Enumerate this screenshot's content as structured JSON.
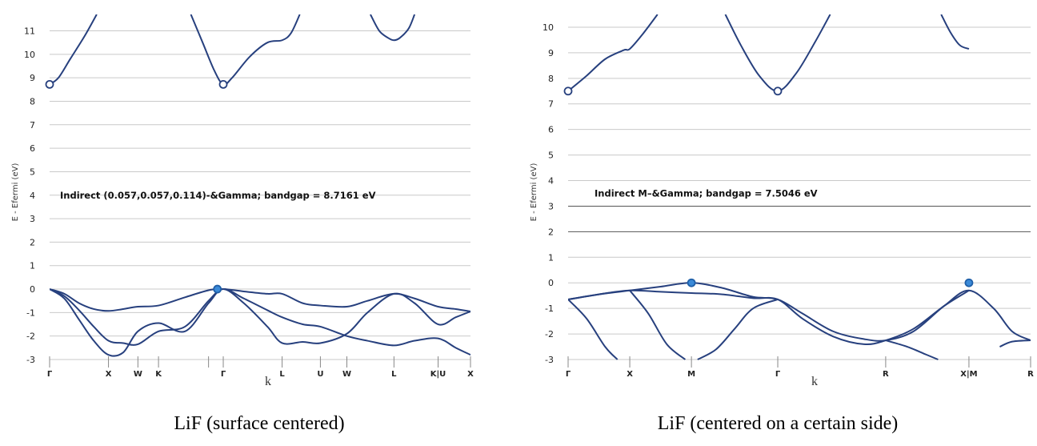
{
  "chart_data": [
    {
      "type": "line",
      "caption": "LiF (surface centered)",
      "ylabel": "E - Efermi (eV)",
      "xlabel": "k",
      "ylim": [
        -3,
        11.7
      ],
      "yticks": [
        -3,
        -2,
        -1,
        0,
        1,
        2,
        3,
        4,
        5,
        6,
        7,
        8,
        9,
        10,
        11
      ],
      "kpoints": [
        {
          "label": "Γ",
          "x": 0
        },
        {
          "label": "X",
          "x": 1.0
        },
        {
          "label": "W",
          "x": 1.5
        },
        {
          "label": "K",
          "x": 1.85
        },
        {
          "label": "",
          "x": 2.7
        },
        {
          "label": "Γ",
          "x": 2.95
        },
        {
          "label": "L",
          "x": 3.95
        },
        {
          "label": "U",
          "x": 4.6
        },
        {
          "label": "W",
          "x": 5.05
        },
        {
          "label": "L",
          "x": 5.85
        },
        {
          "label": "K|U",
          "x": 6.6
        },
        {
          "label": "X",
          "x": 7.15
        }
      ],
      "xlim": [
        0,
        7.15
      ],
      "grid": true,
      "annotation": "Indirect (0.057,0.057,0.114)-&Gamma; bandgap = 8.7161 eV",
      "annotation_y": 4.0,
      "markers": [
        {
          "x": 0.0,
          "y": 8.72,
          "type": "cbm"
        },
        {
          "x": 2.95,
          "y": 8.72,
          "type": "cbm"
        },
        {
          "x": 2.85,
          "y": 0.0,
          "type": "vbm"
        }
      ],
      "series": [
        {
          "x": [
            0,
            0.25,
            0.5,
            0.75,
            1.0,
            1.25,
            1.5,
            1.85,
            2.3,
            2.7,
            2.95,
            3.3,
            3.7,
            3.95,
            4.3,
            4.6,
            5.05,
            5.4,
            5.85,
            6.2,
            6.6,
            6.9,
            7.15
          ],
          "y": [
            0,
            -0.2,
            -0.6,
            -0.85,
            -0.93,
            -0.85,
            -0.75,
            -0.7,
            -0.35,
            -0.05,
            0,
            -0.1,
            -0.2,
            -0.2,
            -0.6,
            -0.7,
            -0.75,
            -0.5,
            -0.2,
            -0.4,
            -0.75,
            -0.85,
            -0.95
          ]
        },
        {
          "x": [
            0,
            0.25,
            0.5,
            0.75,
            1.0,
            1.25,
            1.5,
            1.85,
            2.3,
            2.7,
            2.95,
            3.3,
            3.7,
            3.95,
            4.3,
            4.6,
            5.05,
            5.4,
            5.85,
            6.2,
            6.6,
            6.9,
            7.15
          ],
          "y": [
            0,
            -0.3,
            -0.9,
            -1.6,
            -2.2,
            -2.3,
            -2.35,
            -1.8,
            -1.6,
            -0.5,
            0,
            -0.4,
            -0.9,
            -1.2,
            -1.5,
            -1.6,
            -2.0,
            -2.2,
            -2.4,
            -2.2,
            -2.1,
            -2.5,
            -2.8
          ]
        },
        {
          "x": [
            0,
            0.25,
            0.5,
            0.75,
            1.0,
            1.25,
            1.5,
            1.85,
            2.3,
            2.7,
            2.95,
            3.3,
            3.7,
            3.95,
            4.3,
            4.6,
            5.05,
            5.4,
            5.85,
            6.2,
            6.6,
            6.9,
            7.15
          ],
          "y": [
            0,
            -0.4,
            -1.3,
            -2.2,
            -2.8,
            -2.7,
            -1.8,
            -1.45,
            -1.8,
            -0.6,
            0,
            -0.6,
            -1.6,
            -2.3,
            -2.25,
            -2.3,
            -1.9,
            -1.0,
            -0.2,
            -0.6,
            -1.5,
            -1.2,
            -0.95
          ]
        },
        {
          "x": [
            0,
            0.15,
            0.35,
            0.6,
            0.8
          ],
          "y": [
            8.72,
            9.0,
            9.8,
            10.8,
            11.7
          ]
        },
        {
          "x": [
            2.4,
            2.6,
            2.8,
            2.95,
            3.1,
            3.4,
            3.7,
            3.95,
            4.1,
            4.25
          ],
          "y": [
            11.7,
            10.5,
            9.3,
            8.72,
            9.0,
            9.9,
            10.5,
            10.6,
            10.9,
            11.7
          ]
        },
        {
          "x": [
            5.45,
            5.6,
            5.75,
            5.85,
            5.95,
            6.1,
            6.2
          ],
          "y": [
            11.7,
            11.0,
            10.7,
            10.6,
            10.7,
            11.1,
            11.7
          ]
        }
      ]
    },
    {
      "type": "line",
      "caption": "LiF (centered on a certain side)",
      "ylabel": "E - Efermi (eV)",
      "xlabel": "k",
      "ylim": [
        -3,
        10.5
      ],
      "yticks": [
        -3,
        -2,
        -1,
        0,
        1,
        2,
        3,
        4,
        5,
        6,
        7,
        8,
        9,
        10
      ],
      "kpoints": [
        {
          "label": "Γ",
          "x": 0
        },
        {
          "label": "X",
          "x": 1.0
        },
        {
          "label": "M",
          "x": 2.0
        },
        {
          "label": "Γ",
          "x": 3.4
        },
        {
          "label": "R",
          "x": 5.15
        },
        {
          "label": "X|M",
          "x": 6.5
        },
        {
          "label": "R",
          "x": 7.5
        }
      ],
      "xlim": [
        0,
        7.5
      ],
      "grid": true,
      "annotation": "Indirect M–&Gamma; bandgap = 7.5046 eV",
      "annotation_y": 3.5,
      "markers": [
        {
          "x": 0.0,
          "y": 7.5,
          "type": "cbm"
        },
        {
          "x": 3.4,
          "y": 7.5,
          "type": "cbm"
        },
        {
          "x": 2.0,
          "y": 0.0,
          "type": "vbm"
        },
        {
          "x": 6.5,
          "y": 0.0,
          "type": "vbm"
        }
      ],
      "series": [
        {
          "x": [
            0,
            0.5,
            1.0,
            1.5,
            2.0,
            2.5,
            3.0,
            3.4,
            3.8,
            4.3,
            4.8,
            5.15,
            5.6,
            6.1,
            6.5,
            6.9,
            7.2,
            7.5
          ],
          "y": [
            -0.65,
            -0.45,
            -0.3,
            -0.15,
            0,
            -0.2,
            -0.55,
            -0.65,
            -1.2,
            -1.9,
            -2.2,
            -2.25,
            -1.9,
            -0.9,
            -0.3,
            -1.0,
            -1.9,
            -2.25
          ]
        },
        {
          "x": [
            0,
            0.5,
            1.0,
            1.5,
            2.0,
            2.5,
            3.0,
            3.4,
            3.8,
            4.3,
            4.8,
            5.15,
            5.6,
            6.1,
            6.5
          ],
          "y": [
            -0.65,
            -0.45,
            -0.3,
            -0.35,
            -0.4,
            -0.45,
            -0.6,
            -0.65,
            -1.4,
            -2.1,
            -2.4,
            -2.25,
            -1.8,
            -0.9,
            -0.3
          ]
        },
        {
          "x": [
            0,
            0.3,
            0.6,
            0.8
          ],
          "y": [
            -0.65,
            -1.4,
            -2.5,
            -3.0
          ]
        },
        {
          "x": [
            1.0,
            1.3,
            1.6,
            1.9
          ],
          "y": [
            -0.3,
            -1.2,
            -2.4,
            -3.0
          ]
        },
        {
          "x": [
            2.1,
            2.4,
            2.7,
            3.0,
            3.4
          ],
          "y": [
            -3.0,
            -2.6,
            -1.8,
            -1.0,
            -0.65
          ]
        },
        {
          "x": [
            5.15,
            5.5,
            5.8,
            6.0
          ],
          "y": [
            -2.25,
            -2.5,
            -2.8,
            -3.0
          ]
        },
        {
          "x": [
            7.0,
            7.2,
            7.5
          ],
          "y": [
            -2.5,
            -2.3,
            -2.25
          ]
        },
        {
          "x": [
            0,
            0.3,
            0.6,
            0.9,
            1.0,
            1.2,
            1.45
          ],
          "y": [
            7.5,
            8.1,
            8.75,
            9.1,
            9.15,
            9.7,
            10.5
          ]
        },
        {
          "x": [
            2.55,
            2.8,
            3.1,
            3.4,
            3.7,
            4.0,
            4.25
          ],
          "y": [
            10.5,
            9.3,
            8.1,
            7.5,
            8.2,
            9.4,
            10.5
          ]
        },
        {
          "x": [
            6.05,
            6.2,
            6.35,
            6.5
          ],
          "y": [
            10.5,
            9.8,
            9.3,
            9.15
          ]
        }
      ]
    }
  ]
}
